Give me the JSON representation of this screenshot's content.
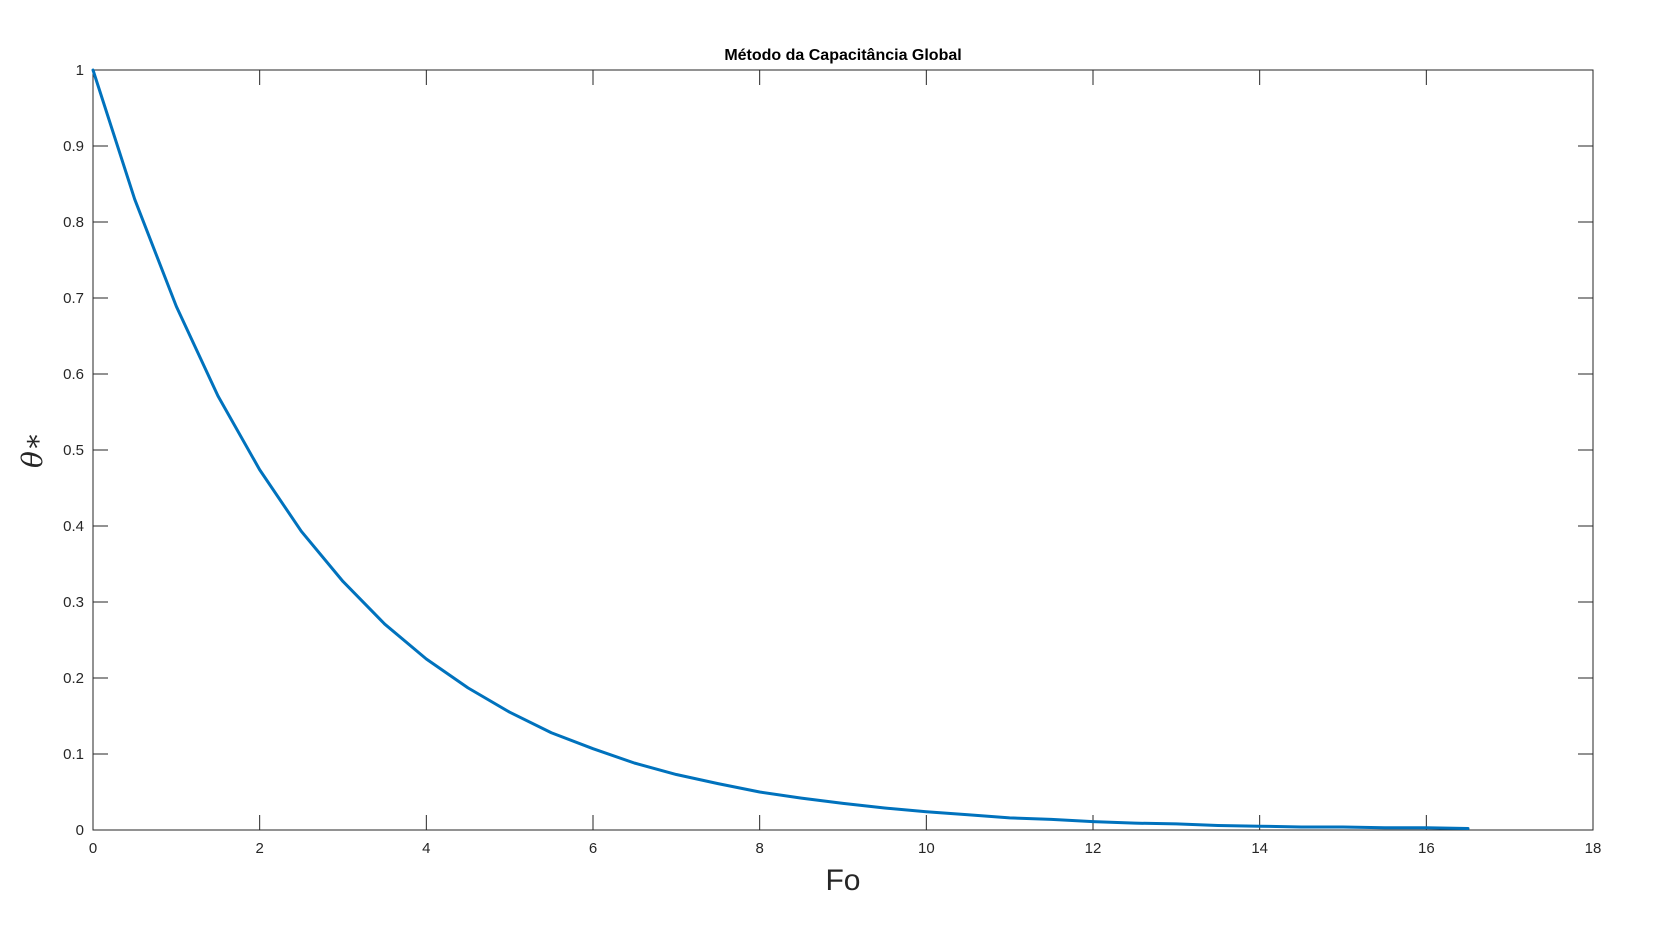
{
  "chart_data": {
    "type": "line",
    "title": "Método da Capacitância Global",
    "xlabel": "Fo",
    "ylabel": "θ∗",
    "xlim": [
      0,
      18
    ],
    "ylim": [
      0,
      1
    ],
    "xticks": [
      0,
      2,
      4,
      6,
      8,
      10,
      12,
      14,
      16,
      18
    ],
    "yticks": [
      0,
      0.1,
      0.2,
      0.3,
      0.4,
      0.5,
      0.6,
      0.7,
      0.8,
      0.9,
      1
    ],
    "grid": false,
    "series": [
      {
        "color": "#0072BD",
        "x": [
          0,
          0.5,
          1,
          1.5,
          2,
          2.5,
          3,
          3.5,
          4,
          4.5,
          5,
          5.5,
          6,
          6.5,
          7,
          7.5,
          8,
          8.5,
          9,
          9.5,
          10,
          10.5,
          11,
          11.5,
          12,
          12.5,
          13,
          13.5,
          14,
          14.5,
          15,
          15.5,
          16,
          16.5
        ],
        "y": [
          1.0,
          0.83,
          0.689,
          0.571,
          0.474,
          0.393,
          0.327,
          0.271,
          0.225,
          0.187,
          0.155,
          0.128,
          0.107,
          0.088,
          0.073,
          0.061,
          0.05,
          0.042,
          0.035,
          0.029,
          0.024,
          0.02,
          0.016,
          0.014,
          0.011,
          0.009,
          0.008,
          0.006,
          0.005,
          0.004,
          0.004,
          0.003,
          0.003,
          0.002
        ]
      }
    ]
  }
}
